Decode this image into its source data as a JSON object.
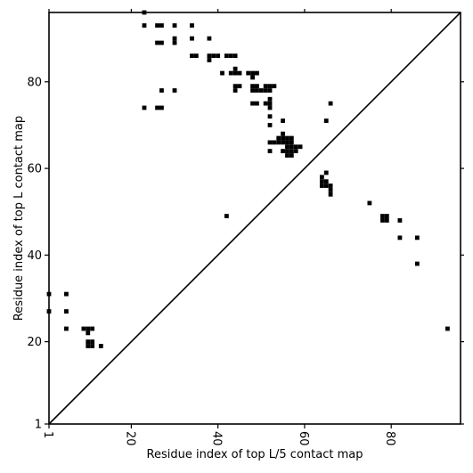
{
  "chart_data": {
    "type": "scatter",
    "title": "",
    "xlabel": "Residue index of top L/5 contact map",
    "ylabel": "Residue index of top L contact map",
    "xlim": [
      1,
      96
    ],
    "ylim": [
      1,
      96
    ],
    "xticks": [
      1,
      20,
      40,
      60,
      80
    ],
    "yticks": [
      1,
      20,
      40,
      60,
      80
    ],
    "xtick_labels": [
      "1",
      "20",
      "40",
      "60",
      "80"
    ],
    "ytick_labels": [
      "1",
      "20",
      "40",
      "60",
      "80"
    ],
    "grid": false,
    "diagonal": true,
    "marker": "square",
    "color": "#000000",
    "upper_points": [
      [
        23,
        96
      ],
      [
        23,
        93
      ],
      [
        26,
        93
      ],
      [
        27,
        93
      ],
      [
        30,
        93
      ],
      [
        34,
        93
      ],
      [
        26,
        89
      ],
      [
        27,
        89
      ],
      [
        30,
        89
      ],
      [
        30,
        90
      ],
      [
        34,
        90
      ],
      [
        38,
        90
      ],
      [
        34,
        86
      ],
      [
        35,
        86
      ],
      [
        38,
        86
      ],
      [
        38,
        85
      ],
      [
        39,
        86
      ],
      [
        40,
        86
      ],
      [
        42,
        86
      ],
      [
        43,
        86
      ],
      [
        44,
        86
      ],
      [
        41,
        82
      ],
      [
        43,
        82
      ],
      [
        44,
        82
      ],
      [
        44,
        83
      ],
      [
        45,
        82
      ],
      [
        47,
        82
      ],
      [
        48,
        82
      ],
      [
        48,
        81
      ],
      [
        49,
        82
      ],
      [
        44,
        79
      ],
      [
        44,
        78
      ],
      [
        45,
        79
      ],
      [
        48,
        79
      ],
      [
        48,
        78
      ],
      [
        49,
        79
      ],
      [
        49,
        78
      ],
      [
        50,
        78
      ],
      [
        51,
        78
      ],
      [
        51,
        79
      ],
      [
        52,
        79
      ],
      [
        52,
        78
      ],
      [
        53,
        79
      ],
      [
        23,
        74
      ],
      [
        26,
        74
      ],
      [
        27,
        74
      ],
      [
        27,
        78
      ],
      [
        30,
        78
      ],
      [
        48,
        75
      ],
      [
        49,
        75
      ],
      [
        51,
        75
      ],
      [
        52,
        75
      ],
      [
        52,
        74
      ],
      [
        52,
        76
      ],
      [
        66,
        75
      ],
      [
        52,
        72
      ],
      [
        55,
        71
      ],
      [
        65,
        71
      ],
      [
        52,
        70
      ],
      [
        52,
        66
      ],
      [
        53,
        66
      ],
      [
        54,
        66
      ],
      [
        54,
        67
      ],
      [
        55,
        66
      ],
      [
        55,
        67
      ],
      [
        55,
        68
      ],
      [
        56,
        66
      ],
      [
        56,
        67
      ],
      [
        57,
        66
      ],
      [
        57,
        67
      ],
      [
        52,
        64
      ],
      [
        55,
        64
      ],
      [
        56,
        64
      ],
      [
        56,
        65
      ],
      [
        57,
        64
      ],
      [
        57,
        65
      ],
      [
        56,
        63
      ],
      [
        57,
        63
      ],
      [
        58,
        64
      ],
      [
        58,
        65
      ],
      [
        59,
        65
      ],
      [
        64,
        58
      ],
      [
        64,
        57
      ],
      [
        64,
        56
      ],
      [
        65,
        57
      ],
      [
        65,
        56
      ],
      [
        65,
        59
      ],
      [
        66,
        56
      ],
      [
        66,
        55
      ],
      [
        66,
        54
      ],
      [
        42,
        49
      ]
    ],
    "lower_points": [
      [
        1,
        31
      ],
      [
        5,
        31
      ],
      [
        1,
        27
      ],
      [
        5,
        27
      ],
      [
        5,
        23
      ],
      [
        9,
        23
      ],
      [
        10,
        23
      ],
      [
        11,
        23
      ],
      [
        10,
        22
      ],
      [
        10,
        20
      ],
      [
        11,
        20
      ],
      [
        10,
        19
      ],
      [
        11,
        19
      ],
      [
        13,
        19
      ],
      [
        75,
        52
      ],
      [
        78,
        49
      ],
      [
        79,
        49
      ],
      [
        78,
        48
      ],
      [
        79,
        48
      ],
      [
        82,
        48
      ],
      [
        82,
        44
      ],
      [
        86,
        44
      ],
      [
        86,
        38
      ],
      [
        93,
        23
      ]
    ]
  }
}
